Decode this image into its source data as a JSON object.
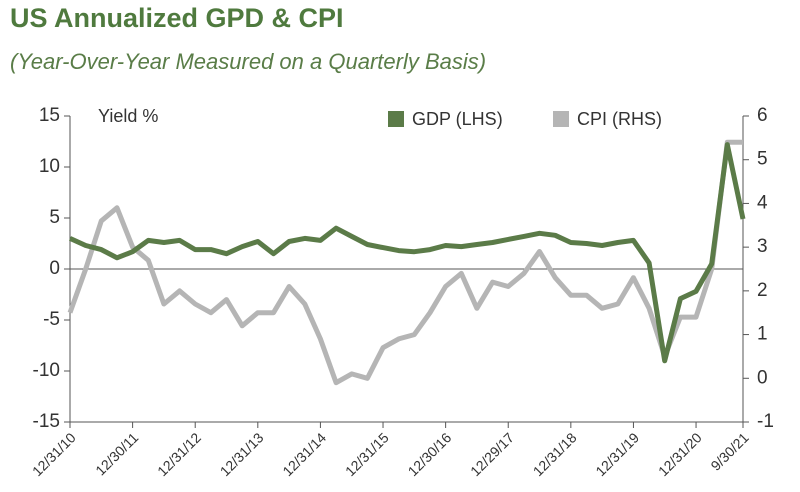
{
  "chart_data": {
    "type": "line",
    "title": "US Annualized GPD & CPI",
    "subtitle": "(Year-Over-Year Measured on a Quarterly Basis)",
    "y_label": "Yield %",
    "categories": [
      "12/31/10",
      null,
      null,
      null,
      "12/30/11",
      null,
      null,
      null,
      "12/31/12",
      null,
      null,
      null,
      "12/31/13",
      null,
      null,
      null,
      "12/31/14",
      null,
      null,
      null,
      "12/31/15",
      null,
      null,
      null,
      "12/30/16",
      null,
      null,
      null,
      "12/29/17",
      null,
      null,
      null,
      "12/31/18",
      null,
      null,
      null,
      "12/31/19",
      null,
      null,
      null,
      "12/31/20",
      null,
      null,
      "9/30/21"
    ],
    "ylim": [
      -15,
      15
    ],
    "yticks": [
      -15,
      -10,
      -5,
      0,
      5,
      10,
      15
    ],
    "y2lim": [
      -1,
      6
    ],
    "y2ticks": [
      -1,
      0,
      1,
      2,
      3,
      4,
      5,
      6
    ],
    "legend": "top",
    "series": [
      {
        "name": "GDP (LHS)",
        "color": "#5b7b48",
        "values": [
          3.0,
          2.3,
          1.9,
          1.1,
          1.7,
          2.8,
          2.6,
          2.8,
          1.9,
          1.9,
          1.5,
          2.2,
          2.7,
          1.5,
          2.7,
          3.0,
          2.8,
          4.0,
          3.2,
          2.4,
          2.1,
          1.8,
          1.7,
          1.9,
          2.3,
          2.2,
          2.4,
          2.6,
          2.9,
          3.2,
          3.5,
          3.3,
          2.6,
          2.5,
          2.3,
          2.6,
          2.8,
          0.6,
          -9.0,
          -2.9,
          -2.2,
          0.5,
          12.2,
          4.9
        ]
      },
      {
        "name": "CPI (RHS)",
        "color": "#b5b5b5",
        "axis": "y2",
        "values": [
          1.5,
          2.5,
          3.6,
          3.9,
          3.0,
          2.7,
          1.7,
          2.0,
          1.7,
          1.5,
          1.8,
          1.2,
          1.5,
          1.5,
          2.1,
          1.7,
          0.9,
          -0.1,
          0.1,
          0.0,
          0.7,
          0.9,
          1.0,
          1.5,
          2.1,
          2.4,
          1.6,
          2.2,
          2.1,
          2.4,
          2.9,
          2.3,
          1.9,
          1.9,
          1.6,
          1.7,
          2.3,
          1.6,
          0.5,
          1.4,
          1.4,
          2.5,
          5.4,
          5.4
        ]
      }
    ]
  }
}
